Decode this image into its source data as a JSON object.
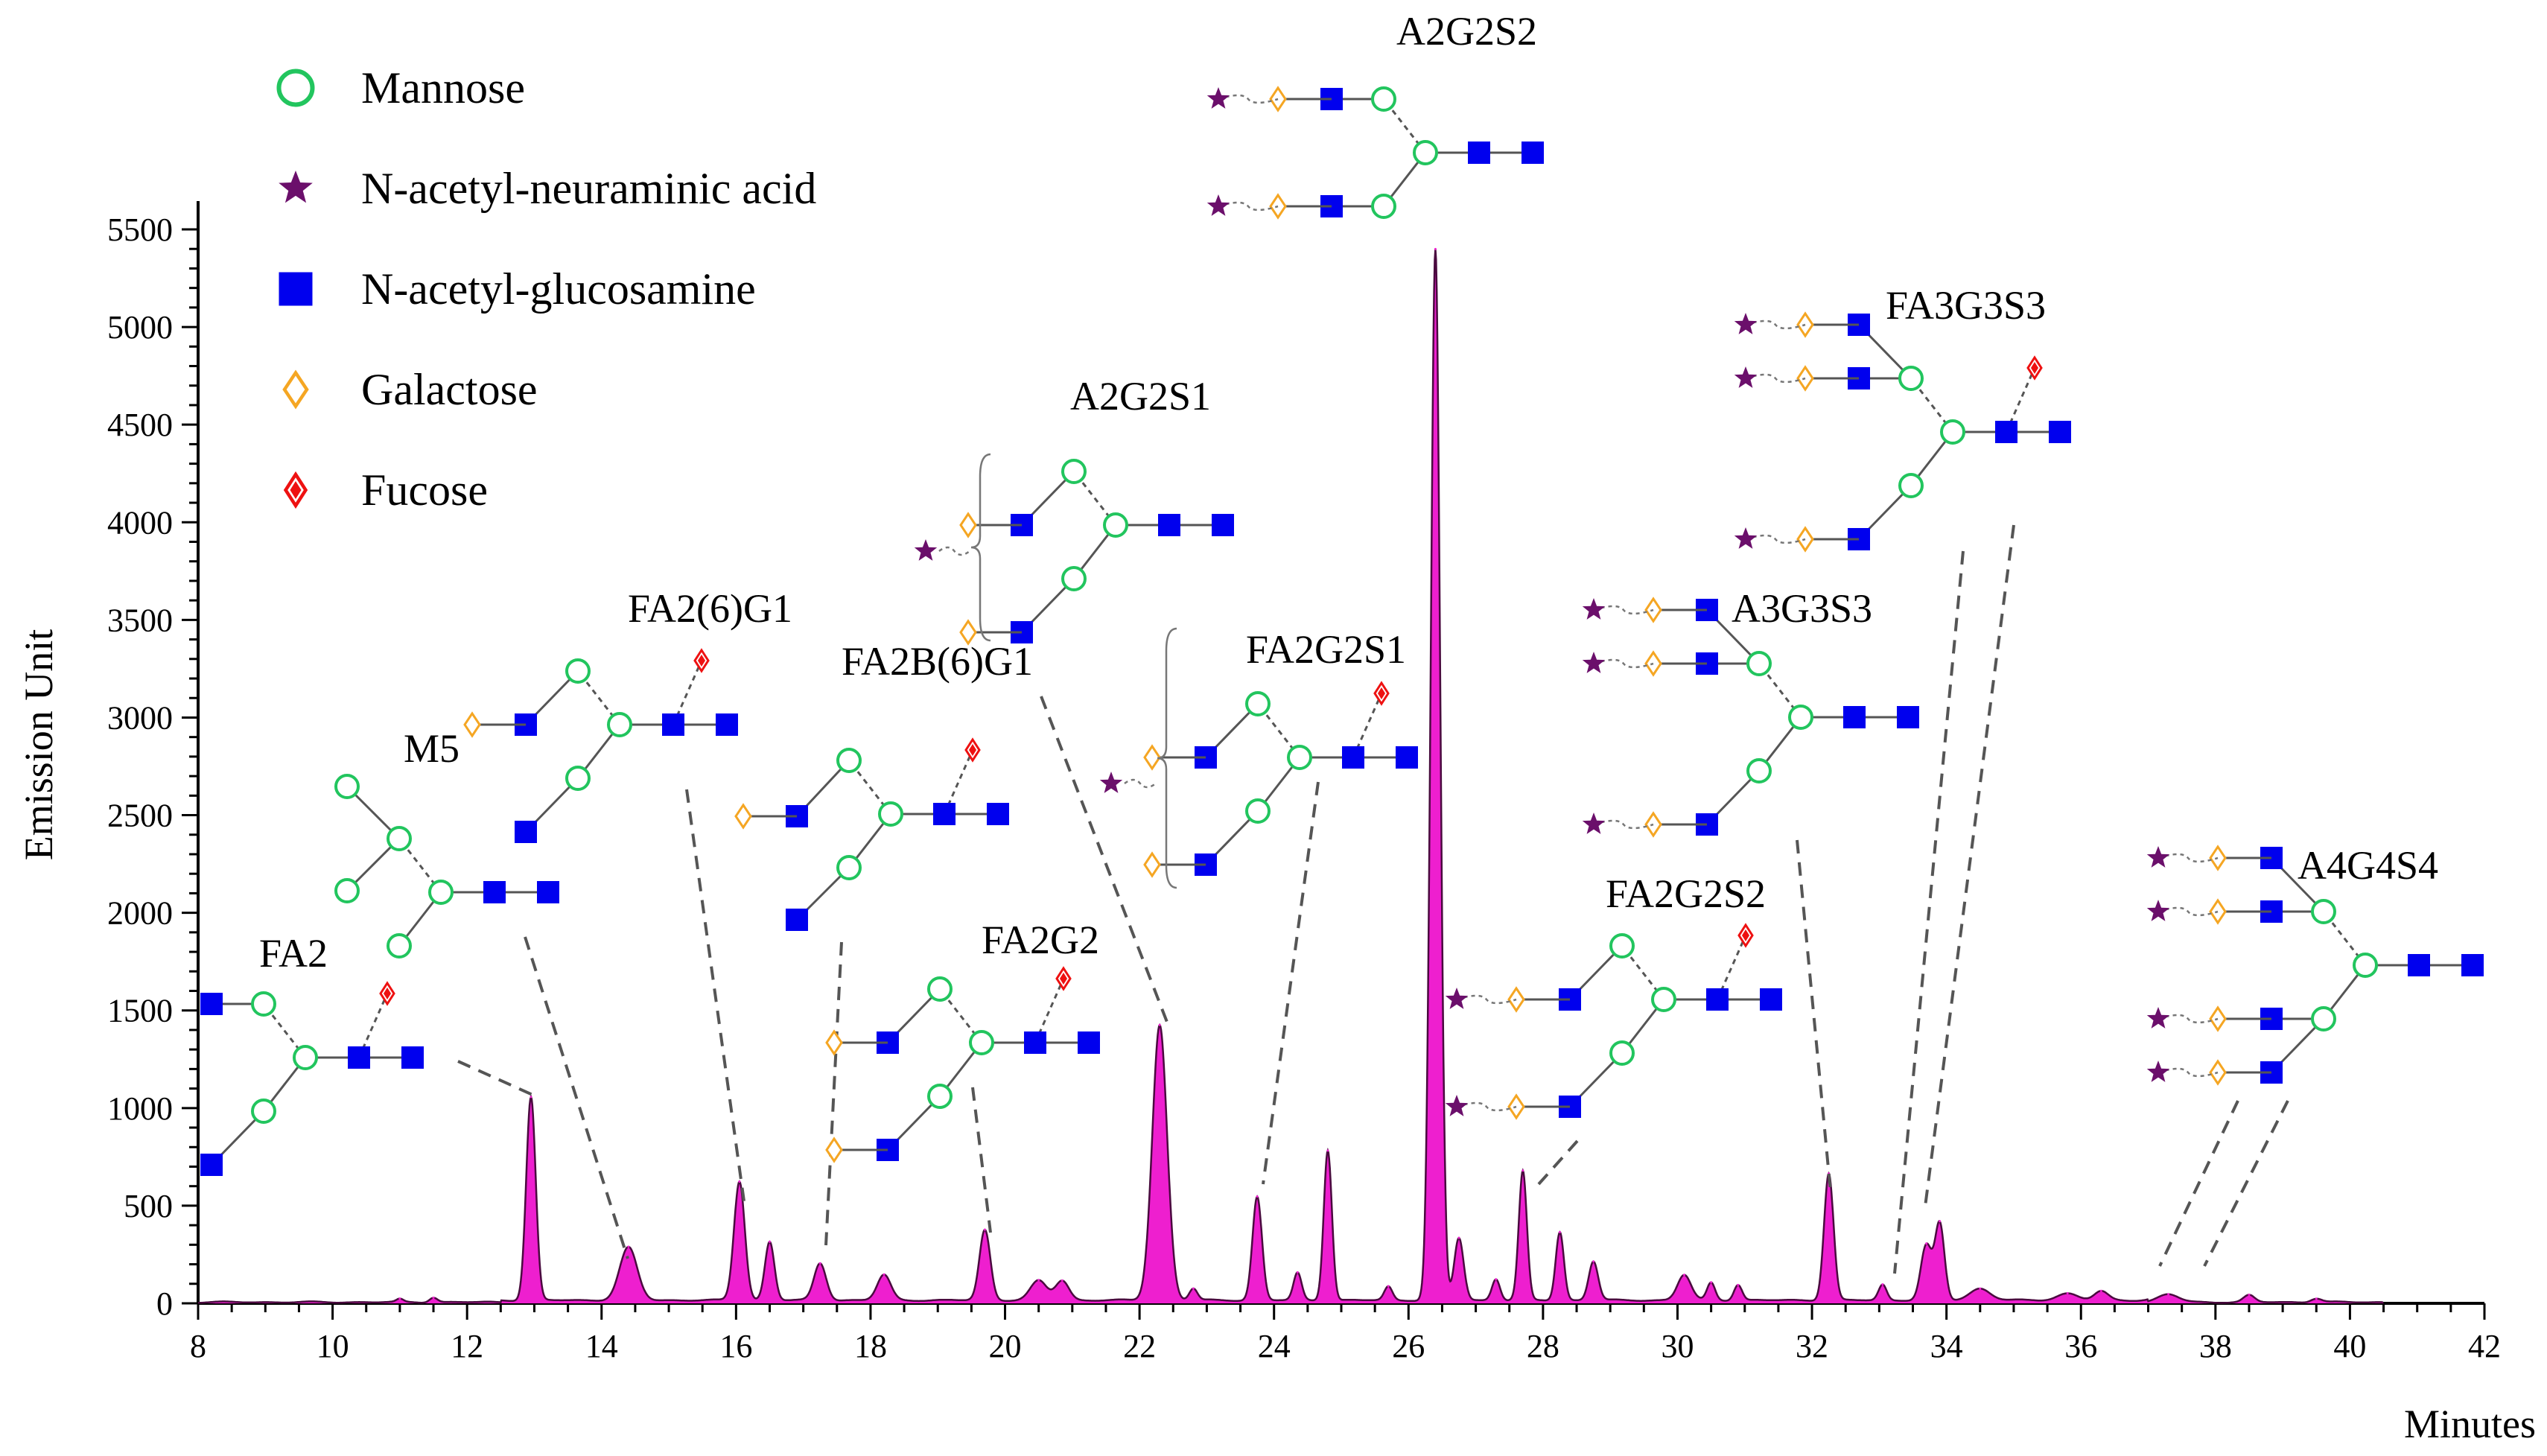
{
  "chart_data": {
    "type": "area",
    "title": "",
    "xlabel": "Minutes",
    "ylabel": "Emission Unit",
    "xlim": [
      8,
      42
    ],
    "ylim": [
      0,
      5600
    ],
    "x_ticks": [
      "8",
      "10",
      "12",
      "14",
      "16",
      "18",
      "20",
      "22",
      "24",
      "26",
      "28",
      "30",
      "32",
      "34",
      "36",
      "38",
      "40",
      "42"
    ],
    "y_ticks": [
      "0",
      "500",
      "1000",
      "1500",
      "2000",
      "2500",
      "3000",
      "3500",
      "4000",
      "4500",
      "5000",
      "5500"
    ],
    "series": [
      {
        "name": "chromatogram",
        "color": "#ee1fcf",
        "peaks": [
          {
            "x": 11.0,
            "y": 15,
            "w": 0.05
          },
          {
            "x": 11.5,
            "y": 25,
            "w": 0.06
          },
          {
            "x": 12.95,
            "y": 1040,
            "w": 0.07
          },
          {
            "x": 14.4,
            "y": 270,
            "w": 0.13
          },
          {
            "x": 16.05,
            "y": 610,
            "w": 0.08
          },
          {
            "x": 16.5,
            "y": 300,
            "w": 0.07
          },
          {
            "x": 17.25,
            "y": 190,
            "w": 0.09
          },
          {
            "x": 18.2,
            "y": 130,
            "w": 0.1
          },
          {
            "x": 19.7,
            "y": 360,
            "w": 0.08
          },
          {
            "x": 20.5,
            "y": 100,
            "w": 0.12
          },
          {
            "x": 20.85,
            "y": 100,
            "w": 0.1
          },
          {
            "x": 22.3,
            "y": 1410,
            "w": 0.11
          },
          {
            "x": 22.8,
            "y": 60,
            "w": 0.06
          },
          {
            "x": 23.75,
            "y": 530,
            "w": 0.07
          },
          {
            "x": 24.35,
            "y": 140,
            "w": 0.06
          },
          {
            "x": 24.8,
            "y": 770,
            "w": 0.06
          },
          {
            "x": 25.7,
            "y": 70,
            "w": 0.06
          },
          {
            "x": 26.4,
            "y": 5380,
            "w": 0.07
          },
          {
            "x": 26.75,
            "y": 320,
            "w": 0.07
          },
          {
            "x": 27.3,
            "y": 110,
            "w": 0.06
          },
          {
            "x": 27.7,
            "y": 660,
            "w": 0.06
          },
          {
            "x": 28.25,
            "y": 350,
            "w": 0.06
          },
          {
            "x": 28.75,
            "y": 200,
            "w": 0.07
          },
          {
            "x": 30.1,
            "y": 130,
            "w": 0.1
          },
          {
            "x": 30.5,
            "y": 90,
            "w": 0.06
          },
          {
            "x": 30.9,
            "y": 80,
            "w": 0.06
          },
          {
            "x": 32.25,
            "y": 650,
            "w": 0.07
          },
          {
            "x": 33.05,
            "y": 80,
            "w": 0.06
          },
          {
            "x": 33.7,
            "y": 280,
            "w": 0.08
          },
          {
            "x": 33.9,
            "y": 390,
            "w": 0.07
          },
          {
            "x": 34.5,
            "y": 60,
            "w": 0.15
          },
          {
            "x": 35.8,
            "y": 35,
            "w": 0.15
          },
          {
            "x": 36.3,
            "y": 45,
            "w": 0.1
          },
          {
            "x": 37.3,
            "y": 40,
            "w": 0.15
          },
          {
            "x": 38.5,
            "y": 35,
            "w": 0.08
          },
          {
            "x": 39.5,
            "y": 20,
            "w": 0.08
          }
        ]
      }
    ],
    "legend": [
      {
        "name": "Mannose",
        "symbol": "circle",
        "color": "#22c55e"
      },
      {
        "name": "N-acetyl-neuraminic acid",
        "symbol": "star",
        "color": "#6b0f6b"
      },
      {
        "name": "N-acetyl-glucosamine",
        "symbol": "square",
        "color": "#0000ee"
      },
      {
        "name": "Galactose",
        "symbol": "diamond",
        "color": "#f5a623"
      },
      {
        "name": "Fucose",
        "symbol": "fucose",
        "color": "#ee1111"
      }
    ],
    "annotations": [
      {
        "id": "fa2",
        "label": "FA2",
        "peak_x": 12.95
      },
      {
        "id": "m5",
        "label": "M5",
        "peak_x": 14.4
      },
      {
        "id": "fa26g1",
        "label": "FA2(6)G1",
        "peak_x": 16.05
      },
      {
        "id": "fa2b6g1",
        "label": "FA2B(6)G1",
        "peak_x": 17.25
      },
      {
        "id": "fa2g2",
        "label": "FA2G2",
        "peak_x": 19.7
      },
      {
        "id": "a2g2s1",
        "label": "A2G2S1",
        "peak_x": 22.3
      },
      {
        "id": "fa2g2s1",
        "label": "FA2G2S1",
        "peak_x": 23.75
      },
      {
        "id": "a2g2s2",
        "label": "A2G2S2",
        "peak_x": 26.4
      },
      {
        "id": "fa2g2s2",
        "label": "FA2G2S2",
        "peak_x": 27.7
      },
      {
        "id": "a3g3s3",
        "label": "A3G3S3",
        "peak_x": 32.25
      },
      {
        "id": "fa3g3s3",
        "label": "FA3G3S3",
        "peak_x": 33.9
      },
      {
        "id": "a4g4s4",
        "label": "A4G4S4",
        "peak_x": 37.3
      }
    ]
  }
}
